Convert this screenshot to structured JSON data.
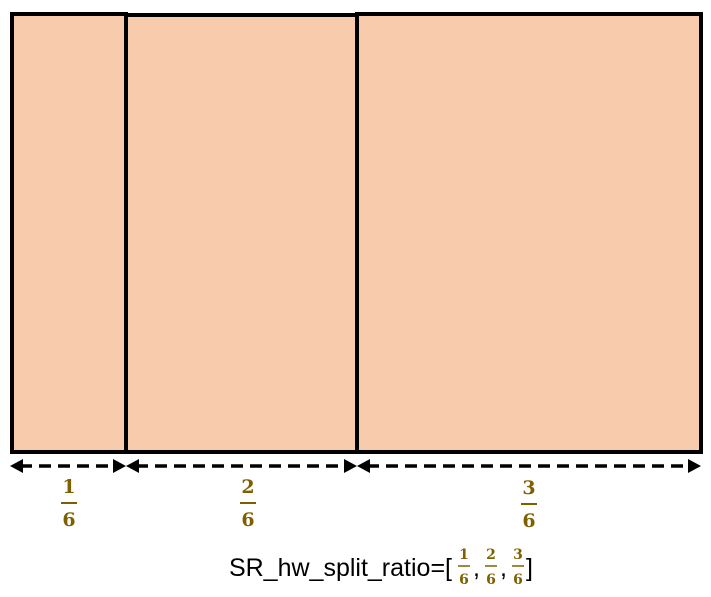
{
  "diagram": {
    "colors": {
      "panel_fill": "#F8CBAD",
      "border": "#000000",
      "fraction": "#7F6000"
    },
    "segments": [
      {
        "numerator": "1",
        "denominator": "6"
      },
      {
        "numerator": "2",
        "denominator": "6"
      },
      {
        "numerator": "3",
        "denominator": "6"
      }
    ],
    "formula": {
      "prefix": "SR_hw_split_ratio=[",
      "separator": ",",
      "suffix": "]"
    }
  }
}
